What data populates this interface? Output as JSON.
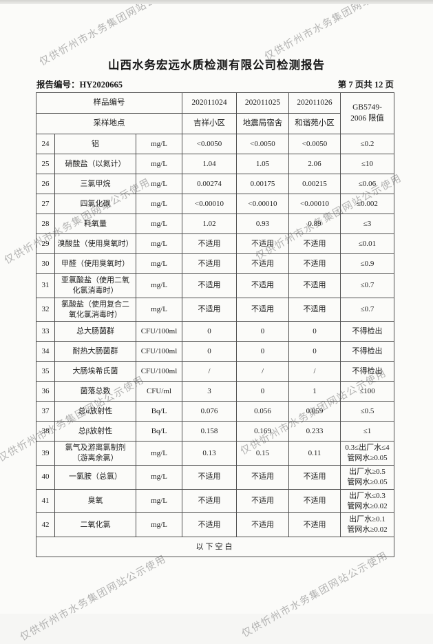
{
  "watermark": {
    "text": "仅供忻州市水务集团网站公示使用"
  },
  "page": {
    "title": "山西水务宏远水质检测有限公司检测报告",
    "report_no": "报告编号：HY2020665",
    "page_info": "第 7 页共 12 页"
  },
  "table": {
    "sample_row_label": "样品编号",
    "sample_ids": [
      "202011024",
      "202011025",
      "202011026"
    ],
    "limit_header": "GB5749-\n2006 限值",
    "location_row_label": "采样地点",
    "locations": [
      "吉祥小区",
      "地震局宿舍",
      "和谐苑小区"
    ],
    "rows": [
      {
        "no": "24",
        "name": "铝",
        "unit": "mg/L",
        "v1": "<0.0050",
        "v2": "<0.0050",
        "v3": "<0.0050",
        "limit": "≤0.2"
      },
      {
        "no": "25",
        "name": "硝酸盐（以氮计）",
        "unit": "mg/L",
        "v1": "1.04",
        "v2": "1.05",
        "v3": "2.06",
        "limit": "≤10"
      },
      {
        "no": "26",
        "name": "三氯甲烷",
        "unit": "mg/L",
        "v1": "0.00274",
        "v2": "0.00175",
        "v3": "0.00215",
        "limit": "≤0.06"
      },
      {
        "no": "27",
        "name": "四氯化碳",
        "unit": "mg/L",
        "v1": "<0.00010",
        "v2": "<0.00010",
        "v3": "<0.00010",
        "limit": "≤0.002"
      },
      {
        "no": "28",
        "name": "耗氧量",
        "unit": "mg/L",
        "v1": "1.02",
        "v2": "0.93",
        "v3": "0.89",
        "limit": "≤3"
      },
      {
        "no": "29",
        "name": "溴酸盐（使用臭氧时）",
        "unit": "mg/L",
        "v1": "不适用",
        "v2": "不适用",
        "v3": "不适用",
        "limit": "≤0.01"
      },
      {
        "no": "30",
        "name": "甲醛（使用臭氧时）",
        "unit": "mg/L",
        "v1": "不适用",
        "v2": "不适用",
        "v3": "不适用",
        "limit": "≤0.9"
      },
      {
        "no": "31",
        "name": "亚氯酸盐（使用二氧\n化氯消毒时）",
        "unit": "mg/L",
        "v1": "不适用",
        "v2": "不适用",
        "v3": "不适用",
        "limit": "≤0.7"
      },
      {
        "no": "32",
        "name": "氯酸盐（使用复合二\n氧化氯消毒时）",
        "unit": "mg/L",
        "v1": "不适用",
        "v2": "不适用",
        "v3": "不适用",
        "limit": "≤0.7"
      },
      {
        "no": "33",
        "name": "总大肠菌群",
        "unit": "CFU/100ml",
        "v1": "0",
        "v2": "0",
        "v3": "0",
        "limit": "不得检出"
      },
      {
        "no": "34",
        "name": "耐热大肠菌群",
        "unit": "CFU/100ml",
        "v1": "0",
        "v2": "0",
        "v3": "0",
        "limit": "不得检出"
      },
      {
        "no": "35",
        "name": "大肠埃希氏菌",
        "unit": "CFU/100ml",
        "v1": "/",
        "v2": "/",
        "v3": "/",
        "limit": "不得检出"
      },
      {
        "no": "36",
        "name": "菌落总数",
        "unit": "CFU/ml",
        "v1": "3",
        "v2": "0",
        "v3": "1",
        "limit": "≤100"
      },
      {
        "no": "37",
        "name": "总α放射性",
        "unit": "Bq/L",
        "v1": "0.076",
        "v2": "0.056",
        "v3": "0.059",
        "limit": "≤0.5"
      },
      {
        "no": "38",
        "name": "总β放射性",
        "unit": "Bq/L",
        "v1": "0.158",
        "v2": "0.169",
        "v3": "0.233",
        "limit": "≤1"
      },
      {
        "no": "39",
        "name": "氯气及游离氯制剂\n（游离余氯）",
        "unit": "mg/L",
        "v1": "0.13",
        "v2": "0.15",
        "v3": "0.11",
        "limit": "0.3≤出厂水≤4\n管网水≥0.05"
      },
      {
        "no": "40",
        "name": "一氯胺（总氯）",
        "unit": "mg/L",
        "v1": "不适用",
        "v2": "不适用",
        "v3": "不适用",
        "limit": "出厂水≥0.5\n管网水≥0.05"
      },
      {
        "no": "41",
        "name": "臭氧",
        "unit": "mg/L",
        "v1": "不适用",
        "v2": "不适用",
        "v3": "不适用",
        "limit": "出厂水≤0.3\n管网水≥0.02"
      },
      {
        "no": "42",
        "name": "二氧化氯",
        "unit": "mg/L",
        "v1": "不适用",
        "v2": "不适用",
        "v3": "不适用",
        "limit": "出厂水≥0.1\n管网水≥0.02"
      }
    ],
    "footer_note": "以下空白"
  }
}
